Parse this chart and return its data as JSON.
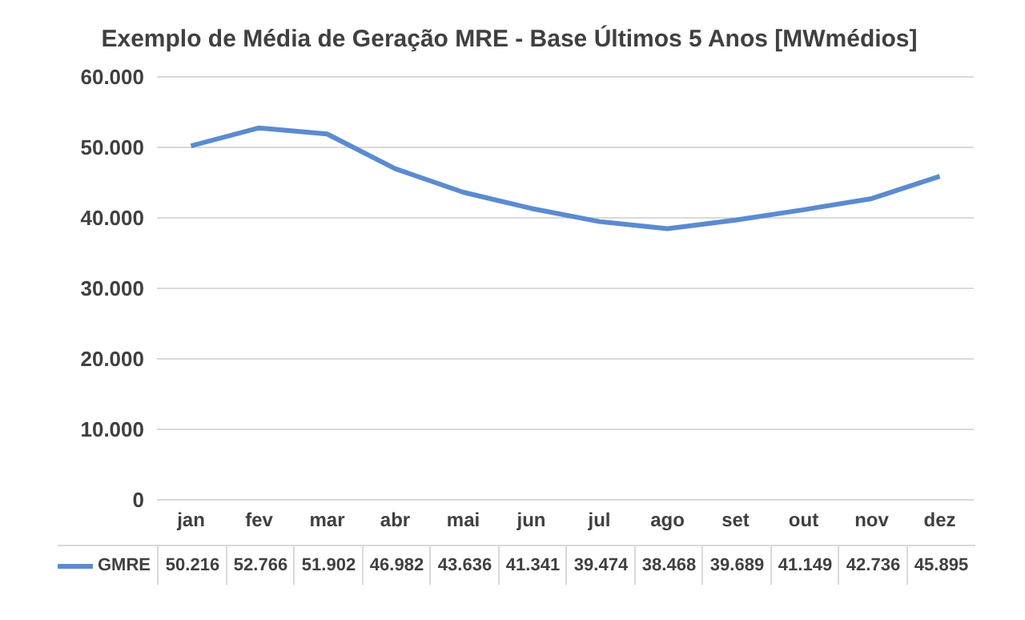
{
  "chart_data": {
    "type": "line",
    "title": "Exemplo de Média de Geração MRE - Base Últimos 5 Anos [MWmédios]",
    "categories": [
      "jan",
      "fev",
      "mar",
      "abr",
      "mai",
      "jun",
      "jul",
      "ago",
      "set",
      "out",
      "nov",
      "dez"
    ],
    "series": [
      {
        "name": "GMRE",
        "color": "#5b8bd0",
        "values": [
          50216,
          52766,
          51902,
          46982,
          43636,
          41341,
          39474,
          38468,
          39689,
          41149,
          42736,
          45895
        ],
        "value_labels": [
          "50.216",
          "52.766",
          "51.902",
          "46.982",
          "43.636",
          "41.341",
          "39.474",
          "38.468",
          "39.689",
          "41.149",
          "42.736",
          "45.895"
        ]
      }
    ],
    "ylim": [
      0,
      60000
    ],
    "yticks": [
      {
        "value": 0,
        "label": "0"
      },
      {
        "value": 10000,
        "label": "10.000"
      },
      {
        "value": 20000,
        "label": "20.000"
      },
      {
        "value": 30000,
        "label": "30.000"
      },
      {
        "value": 40000,
        "label": "40.000"
      },
      {
        "value": 50000,
        "label": "50.000"
      },
      {
        "value": 60000,
        "label": "60.000"
      }
    ],
    "grid": "y",
    "legend": "bottom",
    "marker": "none",
    "line_style": "solid"
  }
}
